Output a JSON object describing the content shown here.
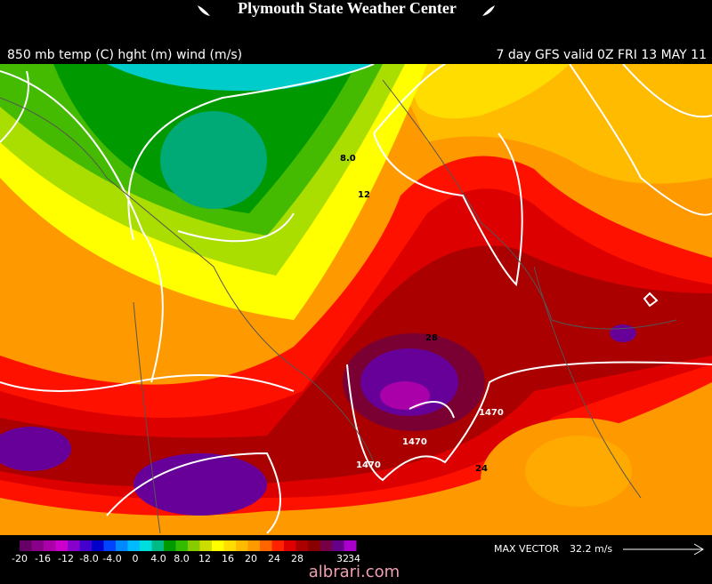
{
  "header": {
    "title": "Plymouth State Weather Center"
  },
  "subtitle_left": "850 mb temp (C) hght (m) wind (m/s)",
  "subtitle_right": "7 day GFS valid 0Z FRI 13 MAY 11",
  "map_labels": [
    "8.0",
    "12",
    "28",
    "1470",
    "1470",
    "1470",
    "24"
  ],
  "colorbar": {
    "labels": [
      "-20",
      "-16",
      "-12",
      "-8.0",
      "-4.0",
      "0",
      "4.0",
      "8.0",
      "12",
      "16",
      "20",
      "24",
      "28",
      "32",
      "34"
    ]
  },
  "max_vector": {
    "label": "MAX VECTOR",
    "value": "32.2 m/s"
  },
  "watermark": "albrari.com"
}
